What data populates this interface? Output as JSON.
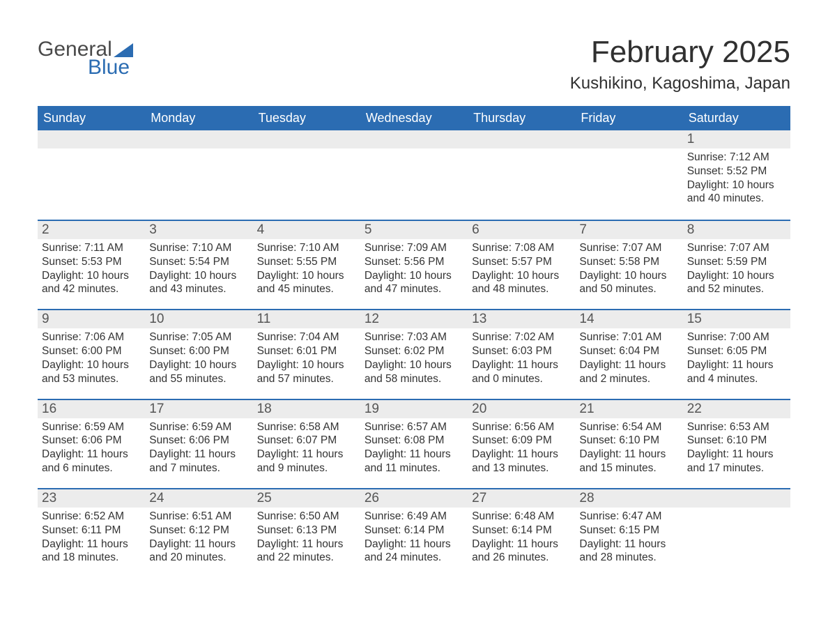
{
  "logo": {
    "word1": "General",
    "word2": "Blue"
  },
  "title": "February 2025",
  "location": "Kushikino, Kagoshima, Japan",
  "colors": {
    "header_bg": "#2b6cb2",
    "header_text": "#ffffff",
    "daynum_bg": "#ececec",
    "border": "#2b6cb2",
    "text": "#303030",
    "background": "#ffffff"
  },
  "days_of_week": [
    "Sunday",
    "Monday",
    "Tuesday",
    "Wednesday",
    "Thursday",
    "Friday",
    "Saturday"
  ],
  "weeks": [
    [
      null,
      null,
      null,
      null,
      null,
      null,
      {
        "n": "1",
        "sunrise": "Sunrise: 7:12 AM",
        "sunset": "Sunset: 5:52 PM",
        "daylight": "Daylight: 10 hours and 40 minutes."
      }
    ],
    [
      {
        "n": "2",
        "sunrise": "Sunrise: 7:11 AM",
        "sunset": "Sunset: 5:53 PM",
        "daylight": "Daylight: 10 hours and 42 minutes."
      },
      {
        "n": "3",
        "sunrise": "Sunrise: 7:10 AM",
        "sunset": "Sunset: 5:54 PM",
        "daylight": "Daylight: 10 hours and 43 minutes."
      },
      {
        "n": "4",
        "sunrise": "Sunrise: 7:10 AM",
        "sunset": "Sunset: 5:55 PM",
        "daylight": "Daylight: 10 hours and 45 minutes."
      },
      {
        "n": "5",
        "sunrise": "Sunrise: 7:09 AM",
        "sunset": "Sunset: 5:56 PM",
        "daylight": "Daylight: 10 hours and 47 minutes."
      },
      {
        "n": "6",
        "sunrise": "Sunrise: 7:08 AM",
        "sunset": "Sunset: 5:57 PM",
        "daylight": "Daylight: 10 hours and 48 minutes."
      },
      {
        "n": "7",
        "sunrise": "Sunrise: 7:07 AM",
        "sunset": "Sunset: 5:58 PM",
        "daylight": "Daylight: 10 hours and 50 minutes."
      },
      {
        "n": "8",
        "sunrise": "Sunrise: 7:07 AM",
        "sunset": "Sunset: 5:59 PM",
        "daylight": "Daylight: 10 hours and 52 minutes."
      }
    ],
    [
      {
        "n": "9",
        "sunrise": "Sunrise: 7:06 AM",
        "sunset": "Sunset: 6:00 PM",
        "daylight": "Daylight: 10 hours and 53 minutes."
      },
      {
        "n": "10",
        "sunrise": "Sunrise: 7:05 AM",
        "sunset": "Sunset: 6:00 PM",
        "daylight": "Daylight: 10 hours and 55 minutes."
      },
      {
        "n": "11",
        "sunrise": "Sunrise: 7:04 AM",
        "sunset": "Sunset: 6:01 PM",
        "daylight": "Daylight: 10 hours and 57 minutes."
      },
      {
        "n": "12",
        "sunrise": "Sunrise: 7:03 AM",
        "sunset": "Sunset: 6:02 PM",
        "daylight": "Daylight: 10 hours and 58 minutes."
      },
      {
        "n": "13",
        "sunrise": "Sunrise: 7:02 AM",
        "sunset": "Sunset: 6:03 PM",
        "daylight": "Daylight: 11 hours and 0 minutes."
      },
      {
        "n": "14",
        "sunrise": "Sunrise: 7:01 AM",
        "sunset": "Sunset: 6:04 PM",
        "daylight": "Daylight: 11 hours and 2 minutes."
      },
      {
        "n": "15",
        "sunrise": "Sunrise: 7:00 AM",
        "sunset": "Sunset: 6:05 PM",
        "daylight": "Daylight: 11 hours and 4 minutes."
      }
    ],
    [
      {
        "n": "16",
        "sunrise": "Sunrise: 6:59 AM",
        "sunset": "Sunset: 6:06 PM",
        "daylight": "Daylight: 11 hours and 6 minutes."
      },
      {
        "n": "17",
        "sunrise": "Sunrise: 6:59 AM",
        "sunset": "Sunset: 6:06 PM",
        "daylight": "Daylight: 11 hours and 7 minutes."
      },
      {
        "n": "18",
        "sunrise": "Sunrise: 6:58 AM",
        "sunset": "Sunset: 6:07 PM",
        "daylight": "Daylight: 11 hours and 9 minutes."
      },
      {
        "n": "19",
        "sunrise": "Sunrise: 6:57 AM",
        "sunset": "Sunset: 6:08 PM",
        "daylight": "Daylight: 11 hours and 11 minutes."
      },
      {
        "n": "20",
        "sunrise": "Sunrise: 6:56 AM",
        "sunset": "Sunset: 6:09 PM",
        "daylight": "Daylight: 11 hours and 13 minutes."
      },
      {
        "n": "21",
        "sunrise": "Sunrise: 6:54 AM",
        "sunset": "Sunset: 6:10 PM",
        "daylight": "Daylight: 11 hours and 15 minutes."
      },
      {
        "n": "22",
        "sunrise": "Sunrise: 6:53 AM",
        "sunset": "Sunset: 6:10 PM",
        "daylight": "Daylight: 11 hours and 17 minutes."
      }
    ],
    [
      {
        "n": "23",
        "sunrise": "Sunrise: 6:52 AM",
        "sunset": "Sunset: 6:11 PM",
        "daylight": "Daylight: 11 hours and 18 minutes."
      },
      {
        "n": "24",
        "sunrise": "Sunrise: 6:51 AM",
        "sunset": "Sunset: 6:12 PM",
        "daylight": "Daylight: 11 hours and 20 minutes."
      },
      {
        "n": "25",
        "sunrise": "Sunrise: 6:50 AM",
        "sunset": "Sunset: 6:13 PM",
        "daylight": "Daylight: 11 hours and 22 minutes."
      },
      {
        "n": "26",
        "sunrise": "Sunrise: 6:49 AM",
        "sunset": "Sunset: 6:14 PM",
        "daylight": "Daylight: 11 hours and 24 minutes."
      },
      {
        "n": "27",
        "sunrise": "Sunrise: 6:48 AM",
        "sunset": "Sunset: 6:14 PM",
        "daylight": "Daylight: 11 hours and 26 minutes."
      },
      {
        "n": "28",
        "sunrise": "Sunrise: 6:47 AM",
        "sunset": "Sunset: 6:15 PM",
        "daylight": "Daylight: 11 hours and 28 minutes."
      },
      null
    ]
  ]
}
